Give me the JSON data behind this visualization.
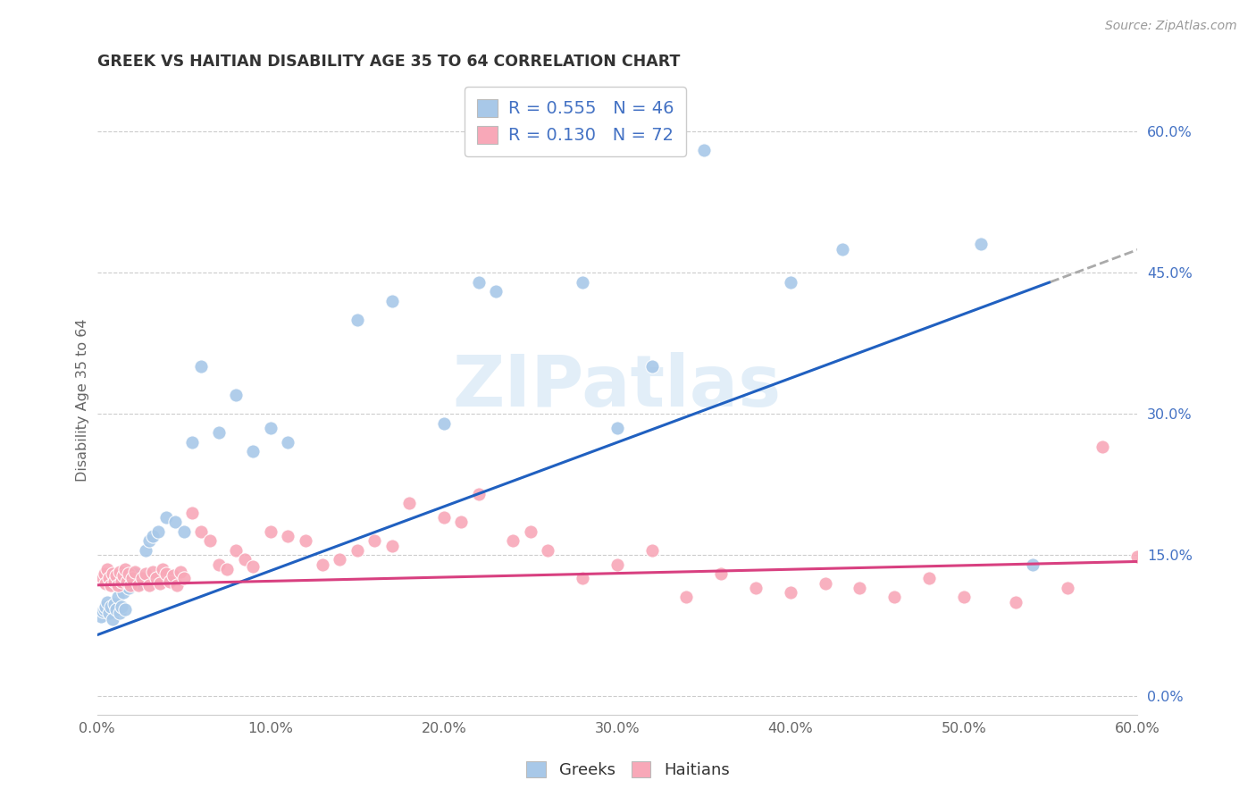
{
  "title": "GREEK VS HAITIAN DISABILITY AGE 35 TO 64 CORRELATION CHART",
  "source": "Source: ZipAtlas.com",
  "ylabel_label": "Disability Age 35 to 64",
  "xlim": [
    0.0,
    0.6
  ],
  "ylim": [
    -0.02,
    0.65
  ],
  "watermark": "ZIPatlas",
  "greek_R": 0.555,
  "greek_N": 46,
  "haitian_R": 0.13,
  "haitian_N": 72,
  "greek_color": "#a8c8e8",
  "haitian_color": "#f8a8b8",
  "greek_line_color": "#2060c0",
  "haitian_line_color": "#d84080",
  "greek_line_solid_end": 0.55,
  "legend_label_greek": "Greeks",
  "legend_label_haitian": "Haitians",
  "greek_line_y0": 0.065,
  "greek_line_y1": 0.44,
  "haitian_line_y0": 0.118,
  "haitian_line_y1": 0.143,
  "greek_x": [
    0.002,
    0.003,
    0.004,
    0.005,
    0.006,
    0.007,
    0.008,
    0.009,
    0.01,
    0.011,
    0.012,
    0.013,
    0.014,
    0.015,
    0.016,
    0.018,
    0.02,
    0.022,
    0.025,
    0.028,
    0.03,
    0.032,
    0.035,
    0.04,
    0.045,
    0.05,
    0.055,
    0.06,
    0.07,
    0.08,
    0.09,
    0.1,
    0.11,
    0.15,
    0.17,
    0.2,
    0.22,
    0.23,
    0.28,
    0.3,
    0.32,
    0.35,
    0.4,
    0.43,
    0.51,
    0.54
  ],
  "greek_y": [
    0.085,
    0.09,
    0.092,
    0.095,
    0.1,
    0.088,
    0.095,
    0.082,
    0.098,
    0.092,
    0.105,
    0.088,
    0.095,
    0.11,
    0.092,
    0.115,
    0.125,
    0.13,
    0.12,
    0.155,
    0.165,
    0.17,
    0.175,
    0.19,
    0.185,
    0.175,
    0.27,
    0.35,
    0.28,
    0.32,
    0.26,
    0.285,
    0.27,
    0.4,
    0.42,
    0.29,
    0.44,
    0.43,
    0.44,
    0.285,
    0.35,
    0.58,
    0.44,
    0.475,
    0.48,
    0.14
  ],
  "haitian_x": [
    0.003,
    0.004,
    0.005,
    0.006,
    0.007,
    0.008,
    0.009,
    0.01,
    0.011,
    0.012,
    0.013,
    0.014,
    0.015,
    0.016,
    0.017,
    0.018,
    0.019,
    0.02,
    0.022,
    0.024,
    0.026,
    0.028,
    0.03,
    0.032,
    0.034,
    0.036,
    0.038,
    0.04,
    0.042,
    0.044,
    0.046,
    0.048,
    0.05,
    0.055,
    0.06,
    0.065,
    0.07,
    0.075,
    0.08,
    0.085,
    0.09,
    0.1,
    0.11,
    0.12,
    0.13,
    0.14,
    0.15,
    0.16,
    0.17,
    0.18,
    0.2,
    0.21,
    0.22,
    0.24,
    0.25,
    0.26,
    0.28,
    0.3,
    0.32,
    0.34,
    0.36,
    0.38,
    0.4,
    0.42,
    0.44,
    0.46,
    0.48,
    0.5,
    0.53,
    0.56,
    0.58,
    0.6
  ],
  "haitian_y": [
    0.125,
    0.13,
    0.12,
    0.135,
    0.125,
    0.118,
    0.13,
    0.122,
    0.128,
    0.118,
    0.132,
    0.122,
    0.128,
    0.135,
    0.122,
    0.13,
    0.118,
    0.125,
    0.132,
    0.118,
    0.125,
    0.13,
    0.118,
    0.132,
    0.125,
    0.12,
    0.135,
    0.13,
    0.122,
    0.128,
    0.118,
    0.132,
    0.125,
    0.195,
    0.175,
    0.165,
    0.14,
    0.135,
    0.155,
    0.145,
    0.138,
    0.175,
    0.17,
    0.165,
    0.14,
    0.145,
    0.155,
    0.165,
    0.16,
    0.205,
    0.19,
    0.185,
    0.215,
    0.165,
    0.175,
    0.155,
    0.125,
    0.14,
    0.155,
    0.105,
    0.13,
    0.115,
    0.11,
    0.12,
    0.115,
    0.105,
    0.125,
    0.105,
    0.1,
    0.115,
    0.265,
    0.148
  ]
}
